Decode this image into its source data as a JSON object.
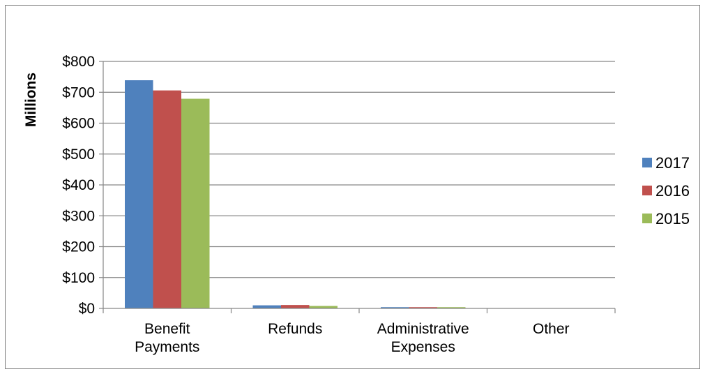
{
  "chart_data": {
    "type": "bar",
    "title": "",
    "xlabel": "",
    "ylabel": "Millions",
    "categories": [
      [
        "Benefit",
        "Payments"
      ],
      [
        "Refunds"
      ],
      [
        "Administrative",
        "Expenses"
      ],
      [
        "Other"
      ]
    ],
    "series": [
      {
        "name": "2017",
        "color": "#4f81bd",
        "values": [
          739,
          10,
          4,
          0
        ]
      },
      {
        "name": "2016",
        "color": "#c0504d",
        "values": [
          706,
          11,
          4,
          0
        ]
      },
      {
        "name": "2015",
        "color": "#9bbb59",
        "values": [
          679,
          8,
          4,
          0
        ]
      }
    ],
    "ylim": [
      0,
      800
    ],
    "yticks": [
      0,
      100,
      200,
      300,
      400,
      500,
      600,
      700,
      800
    ],
    "ytick_labels": [
      "$0",
      "$100",
      "$200",
      "$300",
      "$400",
      "$500",
      "$600",
      "$700",
      "$800"
    ],
    "grid": true,
    "legend_position": "right",
    "gridline_color": "#868686"
  }
}
